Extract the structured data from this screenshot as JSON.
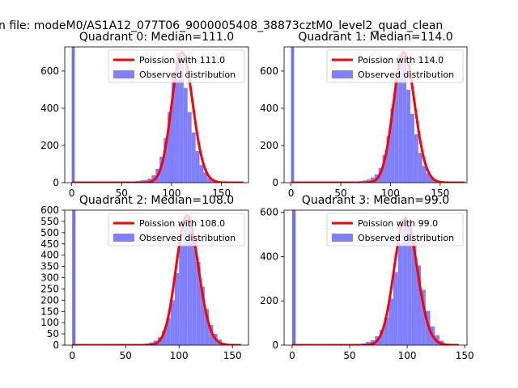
{
  "figure": {
    "suptitle": "n file: modeM0/AS1A12_077T06_9000005408_38873cztM0_level2_quad_clean",
    "colors": {
      "observed": "#8080ff",
      "poisson": "#ff0000",
      "outlier": "#7070ff"
    }
  },
  "chart_data": [
    {
      "type": "bar",
      "title": "Quadrant 0: Median=111.0",
      "xlim": [
        -7,
        177
      ],
      "ylim": [
        0,
        730
      ],
      "xticks": [
        0,
        50,
        100,
        150
      ],
      "yticks": [
        0,
        200,
        400,
        600
      ],
      "legend_position": "upper-right",
      "grid": false,
      "series": [
        {
          "name": "Observed distribution",
          "kind": "histogram",
          "bins_start": 60,
          "bin_width": 4,
          "counts": [
            3,
            8,
            12,
            15,
            22,
            40,
            75,
            140,
            240,
            380,
            560,
            700,
            650,
            510,
            380,
            270,
            170,
            95,
            55,
            25,
            10,
            4
          ],
          "outlier_bar": {
            "x": 0,
            "width": 3,
            "value": 730
          }
        },
        {
          "name": "Poission with 111.0",
          "kind": "line",
          "mean": 111.0,
          "scale": 700,
          "x_range": [
            0,
            172
          ]
        }
      ]
    },
    {
      "type": "bar",
      "title": "Quadrant 1: Median=114.0",
      "xlim": [
        -7,
        177
      ],
      "ylim": [
        0,
        730
      ],
      "xticks": [
        0,
        50,
        100,
        150
      ],
      "yticks": [
        0,
        200,
        400,
        600
      ],
      "legend_position": "upper-right",
      "grid": false,
      "series": [
        {
          "name": "Observed distribution",
          "kind": "histogram",
          "bins_start": 64,
          "bin_width": 4,
          "counts": [
            4,
            8,
            12,
            18,
            28,
            45,
            80,
            150,
            250,
            400,
            560,
            690,
            640,
            500,
            370,
            260,
            160,
            90,
            50,
            25,
            10,
            4
          ],
          "outlier_bar": {
            "x": 0,
            "width": 3,
            "value": 730
          }
        },
        {
          "name": "Poission with 114.0",
          "kind": "line",
          "mean": 114.0,
          "scale": 700,
          "x_range": [
            0,
            175
          ]
        }
      ]
    },
    {
      "type": "bar",
      "title": "Quadrant 2: Median=108.0",
      "xlim": [
        -7,
        165
      ],
      "ylim": [
        0,
        600
      ],
      "xticks": [
        0,
        50,
        100,
        150
      ],
      "yticks": [
        0,
        50,
        100,
        150,
        200,
        250,
        300,
        350,
        400,
        450,
        500,
        550,
        600
      ],
      "legend_position": "upper-right",
      "grid": false,
      "series": [
        {
          "name": "Observed distribution",
          "kind": "histogram",
          "bins_start": 60,
          "bin_width": 4,
          "counts": [
            2,
            5,
            8,
            12,
            20,
            35,
            65,
            120,
            200,
            320,
            450,
            560,
            575,
            490,
            370,
            260,
            160,
            90,
            50,
            25,
            10,
            4
          ],
          "outlier_bar": {
            "x": 0,
            "width": 3,
            "value": 600
          }
        },
        {
          "name": "Poission with 108.0",
          "kind": "line",
          "mean": 108.0,
          "scale": 575,
          "x_range": [
            0,
            158
          ]
        }
      ]
    },
    {
      "type": "bar",
      "title": "Quadrant 3: Median=99.0",
      "xlim": [
        -7,
        152
      ],
      "ylim": [
        0,
        610
      ],
      "xticks": [
        0,
        50,
        100,
        150
      ],
      "yticks": [
        0,
        200,
        400,
        600
      ],
      "legend_position": "upper-right",
      "grid": false,
      "series": [
        {
          "name": "Observed distribution",
          "kind": "histogram",
          "bins_start": 52,
          "bin_width": 4,
          "counts": [
            2,
            5,
            8,
            14,
            22,
            40,
            70,
            125,
            210,
            330,
            460,
            570,
            560,
            470,
            360,
            250,
            155,
            85,
            45,
            20,
            8,
            3
          ],
          "outlier_bar": {
            "x": 0,
            "width": 3,
            "value": 610
          }
        },
        {
          "name": "Poission with 99.0",
          "kind": "line",
          "mean": 99.0,
          "scale": 575,
          "x_range": [
            0,
            145
          ]
        }
      ]
    }
  ]
}
